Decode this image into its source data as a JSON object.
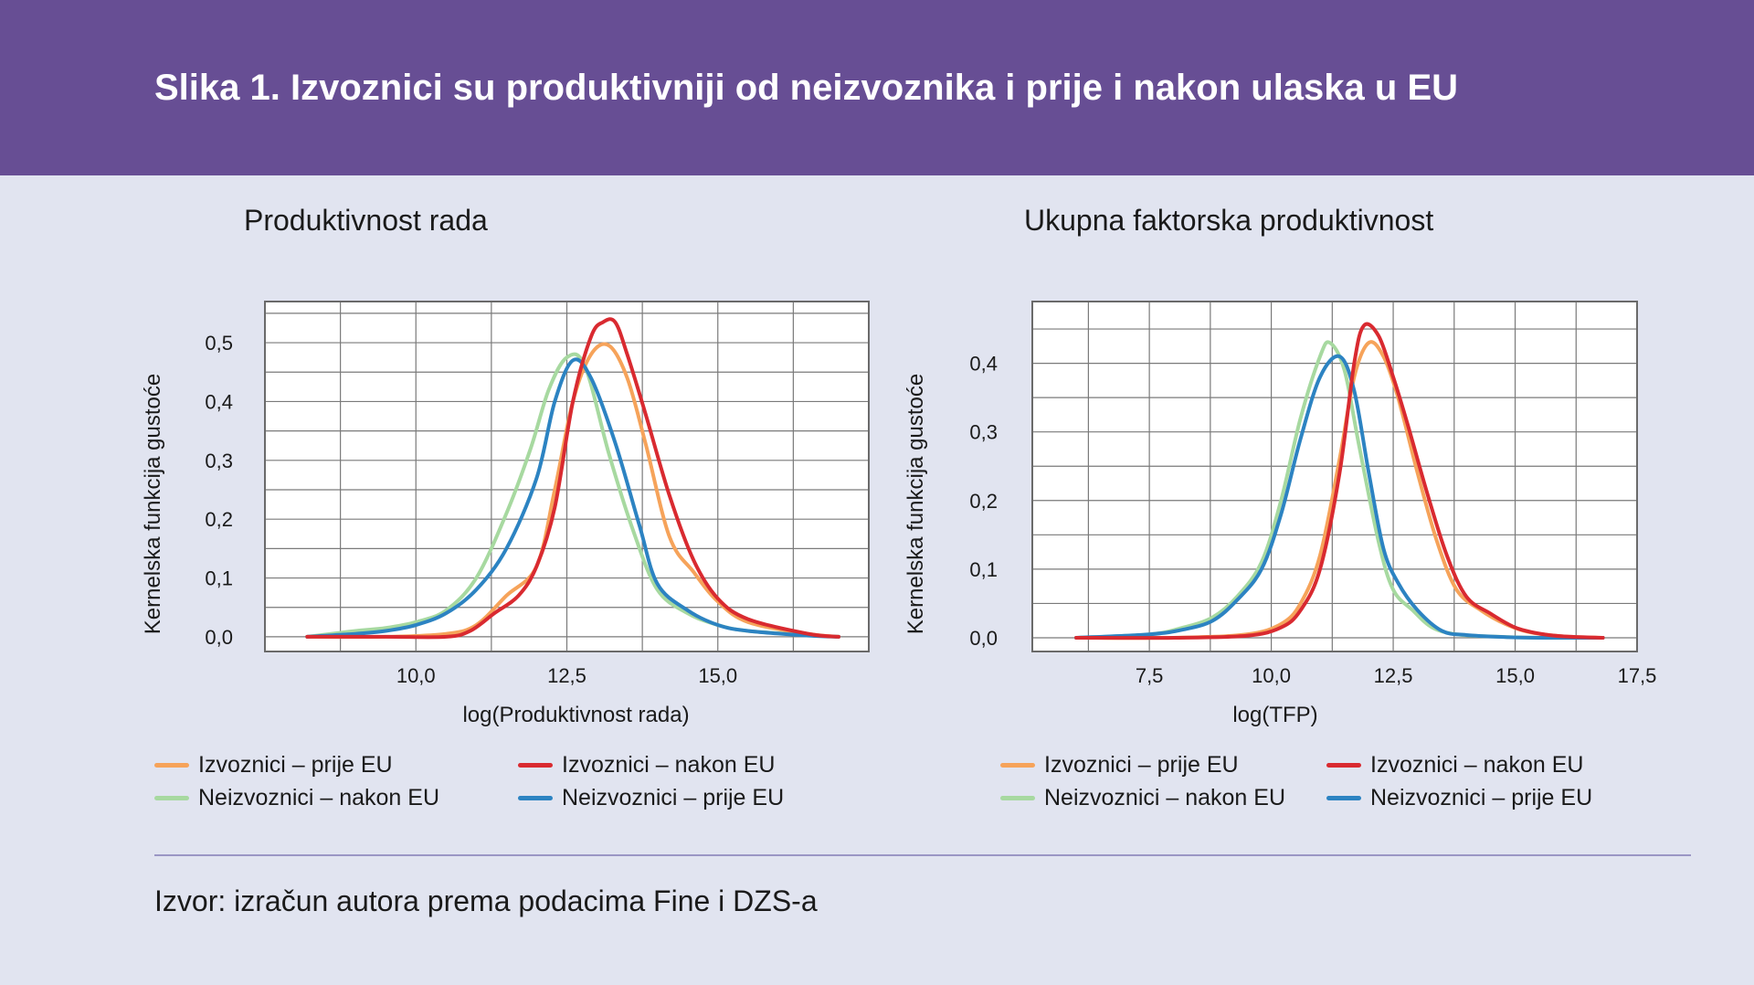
{
  "header": {
    "title": "Slika 1. Izvoznici su produktivniji od neizvoznika i prije i nakon ulaska u EU"
  },
  "footer": {
    "source": "Izvor: izračun autora prema podacima Fine i DZS-a"
  },
  "colors": {
    "header_bg": "#674e94",
    "page_bg": "#e1e4f0",
    "izvoznici_prije": "#f6a35a",
    "izvoznici_nakon": "#d92a30",
    "neizvoznici_nakon": "#a7d9a0",
    "neizvoznici_prije": "#2c83c2"
  },
  "chart_data": [
    {
      "type": "line",
      "title": "Produktivnost rada",
      "xlabel": "log(Produktivnost rada)",
      "ylabel": "Kernelska funkcija gustoće",
      "xlim": [
        7.5,
        17.5
      ],
      "ylim": [
        -0.025,
        0.57
      ],
      "xticks": [
        10.0,
        12.5,
        15.0
      ],
      "xtick_labels": [
        "10,0",
        "12,5",
        "15,0"
      ],
      "yticks": [
        0.0,
        0.1,
        0.2,
        0.3,
        0.4,
        0.5
      ],
      "ytick_labels": [
        "0,0",
        "0,1",
        "0,2",
        "0,3",
        "0,4",
        "0,5"
      ],
      "grid": true,
      "series": [
        {
          "name": "Izvoznici – prije EU",
          "color_key": "izvoznici_prije",
          "x": [
            8.2,
            9.5,
            10.5,
            11.0,
            11.5,
            12.0,
            12.3,
            12.6,
            12.9,
            13.2,
            13.5,
            13.8,
            14.2,
            14.6,
            15.0,
            15.5,
            16.5,
            17.0
          ],
          "y": [
            0.0,
            0.0,
            0.005,
            0.02,
            0.07,
            0.12,
            0.25,
            0.4,
            0.48,
            0.495,
            0.44,
            0.33,
            0.17,
            0.11,
            0.06,
            0.025,
            0.005,
            0.0
          ]
        },
        {
          "name": "Izvoznici – nakon EU",
          "color_key": "izvoznici_nakon",
          "x": [
            8.2,
            9.5,
            10.5,
            10.9,
            11.3,
            11.7,
            12.0,
            12.3,
            12.6,
            12.9,
            13.1,
            13.3,
            13.5,
            13.8,
            14.2,
            14.6,
            15.0,
            15.5,
            16.5,
            17.0
          ],
          "y": [
            0.0,
            0.0,
            0.0,
            0.01,
            0.04,
            0.07,
            0.12,
            0.22,
            0.4,
            0.51,
            0.535,
            0.535,
            0.48,
            0.38,
            0.24,
            0.13,
            0.065,
            0.03,
            0.005,
            0.0
          ]
        },
        {
          "name": "Neizvoznici – nakon EU",
          "color_key": "neizvoznici_nakon",
          "x": [
            8.2,
            9.0,
            9.5,
            10.0,
            10.5,
            11.0,
            11.5,
            11.9,
            12.2,
            12.5,
            12.8,
            13.2,
            13.6,
            14.0,
            14.5,
            15.0,
            15.5,
            16.5,
            17.0
          ],
          "y": [
            0.0,
            0.01,
            0.015,
            0.025,
            0.045,
            0.1,
            0.21,
            0.32,
            0.42,
            0.475,
            0.46,
            0.31,
            0.18,
            0.08,
            0.04,
            0.02,
            0.01,
            0.003,
            0.0
          ]
        },
        {
          "name": "Neizvoznici – prije EU",
          "color_key": "neizvoznici_prije",
          "x": [
            8.2,
            9.0,
            9.5,
            10.0,
            10.5,
            11.0,
            11.5,
            12.0,
            12.3,
            12.6,
            12.9,
            13.3,
            13.7,
            14.0,
            14.5,
            15.0,
            15.5,
            16.5,
            17.0
          ],
          "y": [
            0.0,
            0.005,
            0.01,
            0.02,
            0.04,
            0.08,
            0.15,
            0.27,
            0.4,
            0.47,
            0.44,
            0.33,
            0.19,
            0.09,
            0.045,
            0.02,
            0.01,
            0.002,
            0.0
          ]
        }
      ]
    },
    {
      "type": "line",
      "title": "Ukupna faktorska produktivnost",
      "xlabel": "log(TFP)",
      "ylabel": "Kernelska funkcija gustoće",
      "xlim": [
        5.1,
        17.5
      ],
      "ylim": [
        -0.02,
        0.49
      ],
      "xticks": [
        7.5,
        10.0,
        12.5,
        15.0,
        17.5
      ],
      "xtick_labels": [
        "7,5",
        "10,0",
        "12,5",
        "15,0",
        "17,5"
      ],
      "yticks": [
        0.0,
        0.1,
        0.2,
        0.3,
        0.4
      ],
      "ytick_labels": [
        "0,0",
        "0,1",
        "0,2",
        "0,3",
        "0,4"
      ],
      "grid": true,
      "series": [
        {
          "name": "Izvoznici – prije EU",
          "color_key": "izvoznici_prije",
          "x": [
            6.0,
            8.0,
            9.5,
            10.2,
            10.6,
            11.0,
            11.4,
            11.7,
            12.0,
            12.3,
            12.6,
            13.0,
            13.4,
            13.8,
            14.3,
            14.8,
            15.3,
            16.0,
            16.8
          ],
          "y": [
            0.0,
            0.0,
            0.005,
            0.02,
            0.05,
            0.12,
            0.26,
            0.38,
            0.43,
            0.41,
            0.35,
            0.24,
            0.14,
            0.07,
            0.04,
            0.02,
            0.008,
            0.002,
            0.0
          ]
        },
        {
          "name": "Izvoznici – nakon EU",
          "color_key": "izvoznici_nakon",
          "x": [
            6.0,
            8.0,
            9.5,
            10.2,
            10.6,
            11.0,
            11.4,
            11.7,
            11.9,
            12.2,
            12.5,
            12.8,
            13.2,
            13.6,
            14.0,
            14.5,
            15.0,
            15.5,
            16.0,
            16.8
          ],
          "y": [
            0.0,
            0.0,
            0.003,
            0.015,
            0.04,
            0.1,
            0.24,
            0.4,
            0.455,
            0.44,
            0.38,
            0.31,
            0.21,
            0.12,
            0.06,
            0.035,
            0.015,
            0.006,
            0.002,
            0.0
          ]
        },
        {
          "name": "Neizvoznici – nakon EU",
          "color_key": "neizvoznici_nakon",
          "x": [
            6.0,
            7.5,
            8.2,
            8.8,
            9.3,
            9.8,
            10.2,
            10.6,
            11.0,
            11.2,
            11.5,
            11.8,
            12.2,
            12.5,
            12.9,
            13.3,
            13.8,
            14.5,
            15.5,
            16.8
          ],
          "y": [
            0.0,
            0.005,
            0.015,
            0.03,
            0.06,
            0.11,
            0.2,
            0.32,
            0.41,
            0.43,
            0.39,
            0.28,
            0.14,
            0.07,
            0.04,
            0.015,
            0.005,
            0.002,
            0.0,
            0.0
          ]
        },
        {
          "name": "Neizvoznici – prije EU",
          "color_key": "neizvoznici_prije",
          "x": [
            6.0,
            7.5,
            8.2,
            8.8,
            9.3,
            9.8,
            10.2,
            10.6,
            11.0,
            11.4,
            11.7,
            12.0,
            12.3,
            12.6,
            13.0,
            13.5,
            14.0,
            14.8,
            15.5,
            16.8
          ],
          "y": [
            0.0,
            0.005,
            0.012,
            0.025,
            0.055,
            0.1,
            0.18,
            0.29,
            0.38,
            0.41,
            0.36,
            0.24,
            0.13,
            0.08,
            0.04,
            0.01,
            0.004,
            0.001,
            0.0,
            0.0
          ]
        }
      ]
    }
  ]
}
